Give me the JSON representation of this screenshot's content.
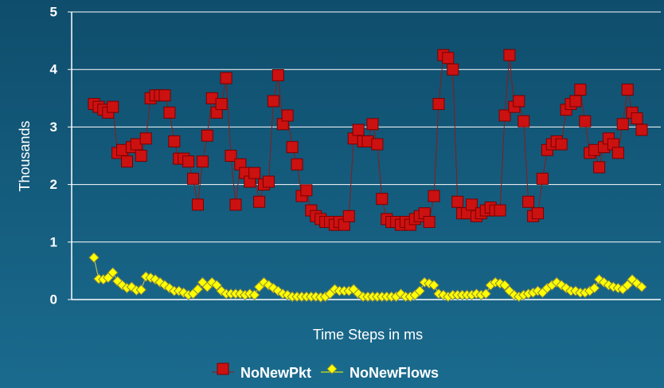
{
  "chart_data": {
    "type": "line",
    "ylabel": "Thousands",
    "xlabel": "Time Steps in ms",
    "ylim": [
      0,
      5
    ],
    "yticks": [
      0,
      1,
      2,
      3,
      4,
      5
    ],
    "grid": true,
    "legend": "bottom",
    "series": [
      {
        "name": "NoNewPkt",
        "color": "#cc1111",
        "marker": "square",
        "values": [
          3.4,
          3.35,
          3.3,
          3.25,
          3.35,
          2.55,
          2.6,
          2.4,
          2.65,
          2.7,
          2.5,
          2.8,
          3.5,
          3.55,
          3.55,
          3.55,
          3.25,
          2.75,
          2.45,
          2.45,
          2.4,
          2.1,
          1.65,
          2.4,
          2.85,
          3.5,
          3.25,
          3.4,
          3.85,
          2.5,
          1.65,
          2.35,
          2.2,
          2.05,
          2.2,
          1.7,
          2.0,
          2.05,
          3.45,
          3.9,
          3.05,
          3.2,
          2.65,
          2.35,
          1.8,
          1.9,
          1.55,
          1.45,
          1.4,
          1.35,
          1.35,
          1.3,
          1.35,
          1.3,
          1.45,
          2.8,
          2.95,
          2.75,
          2.75,
          3.05,
          2.7,
          1.75,
          1.4,
          1.35,
          1.35,
          1.3,
          1.35,
          1.3,
          1.4,
          1.45,
          1.5,
          1.35,
          1.8,
          3.4,
          4.25,
          4.2,
          4.0,
          1.7,
          1.5,
          1.5,
          1.65,
          1.45,
          1.5,
          1.55,
          1.6,
          1.55,
          1.55,
          3.2,
          4.25,
          3.35,
          3.45,
          3.1,
          1.7,
          1.45,
          1.5,
          2.1,
          2.6,
          2.7,
          2.75,
          2.7,
          3.3,
          3.4,
          3.45,
          3.65,
          3.1,
          2.55,
          2.6,
          2.3,
          2.65,
          2.8,
          2.7,
          2.55,
          3.05,
          3.65,
          3.25,
          3.15,
          2.95
        ]
      },
      {
        "name": "NoNewFlows",
        "color": "#ffff00",
        "marker": "diamond",
        "values": [
          0.73,
          0.36,
          0.35,
          0.38,
          0.47,
          0.32,
          0.25,
          0.2,
          0.22,
          0.16,
          0.17,
          0.4,
          0.38,
          0.35,
          0.3,
          0.25,
          0.2,
          0.15,
          0.15,
          0.12,
          0.08,
          0.1,
          0.18,
          0.3,
          0.22,
          0.3,
          0.25,
          0.15,
          0.1,
          0.1,
          0.1,
          0.1,
          0.08,
          0.1,
          0.08,
          0.22,
          0.3,
          0.25,
          0.2,
          0.15,
          0.1,
          0.08,
          0.05,
          0.05,
          0.05,
          0.05,
          0.05,
          0.05,
          0.04,
          0.05,
          0.1,
          0.18,
          0.15,
          0.15,
          0.15,
          0.18,
          0.1,
          0.05,
          0.05,
          0.05,
          0.05,
          0.05,
          0.05,
          0.05,
          0.05,
          0.1,
          0.05,
          0.05,
          0.08,
          0.15,
          0.3,
          0.28,
          0.25,
          0.1,
          0.08,
          0.05,
          0.08,
          0.08,
          0.08,
          0.08,
          0.08,
          0.1,
          0.08,
          0.1,
          0.25,
          0.3,
          0.28,
          0.25,
          0.15,
          0.08,
          0.05,
          0.08,
          0.1,
          0.12,
          0.15,
          0.12,
          0.2,
          0.25,
          0.3,
          0.25,
          0.2,
          0.15,
          0.15,
          0.12,
          0.12,
          0.15,
          0.2,
          0.35,
          0.3,
          0.25,
          0.22,
          0.2,
          0.18,
          0.25,
          0.35,
          0.28,
          0.22
        ]
      }
    ]
  }
}
